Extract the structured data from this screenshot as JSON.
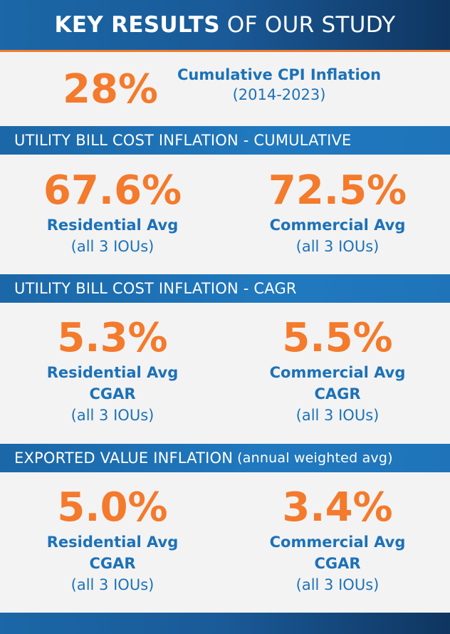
{
  "header": {
    "title_bold": "KEY RESULTS",
    "title_light": "OF OUR STUDY"
  },
  "cpi": {
    "value": "28%",
    "label": "Cumulative CPI Inflation",
    "period": "(2014-2023)"
  },
  "sections": {
    "cumulative": {
      "title": "UTILITY BILL COST INFLATION - CUMULATIVE",
      "left": {
        "value": "67.6%",
        "label": "Residential Avg",
        "sub": "(all 3 IOUs)"
      },
      "right": {
        "value": "72.5%",
        "label": "Commercial Avg",
        "sub": "(all 3 IOUs)"
      }
    },
    "cagr": {
      "title": "UTILITY BILL COST INFLATION - CAGR",
      "left": {
        "value": "5.3%",
        "label": "Residential Avg",
        "label2": "CGAR",
        "sub": "(all 3 IOUs)"
      },
      "right": {
        "value": "5.5%",
        "label": "Commercial Avg",
        "label2": "CAGR",
        "sub": "(all 3 IOUs)"
      }
    },
    "exported": {
      "title": "EXPORTED VALUE INFLATION",
      "title_paren": "(annual weighted avg)",
      "left": {
        "value": "5.0%",
        "label": "Residential Avg",
        "label2": "CGAR",
        "sub": "(all 3 IOUs)"
      },
      "right": {
        "value": "3.4%",
        "label": "Commercial Avg",
        "label2": "CGAR",
        "sub": "(all 3 IOUs)"
      }
    }
  },
  "colors": {
    "accent_orange": "#f47a2c",
    "brand_blue": "#1c72b8",
    "navy": "#0f3560"
  }
}
